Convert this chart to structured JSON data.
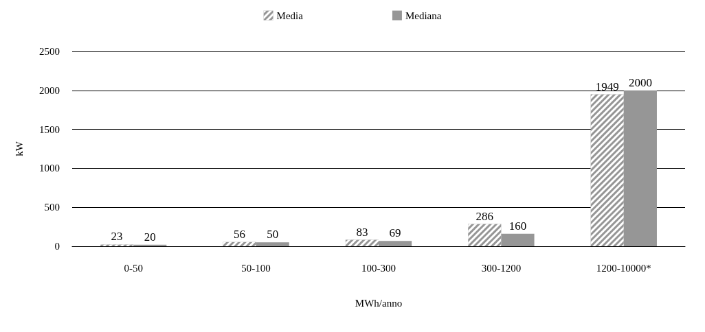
{
  "chart_data": {
    "type": "bar",
    "xlabel": "MWh/anno",
    "ylabel": "kW",
    "categories": [
      "0-50",
      "50-100",
      "100-300",
      "300-1200",
      "1200-10000*"
    ],
    "series": [
      {
        "name": "Media",
        "color": "#969696",
        "values": [
          23,
          56,
          83,
          286,
          1949
        ]
      },
      {
        "name": "Mediana",
        "color": "#969696",
        "values": [
          20,
          50,
          69,
          160,
          2000
        ]
      }
    ],
    "ylim": [
      0,
      2500
    ],
    "yticks": [
      0,
      500,
      1000,
      1500,
      2000,
      2500
    ],
    "grid": "y",
    "legend": "top",
    "data_labels": true
  }
}
